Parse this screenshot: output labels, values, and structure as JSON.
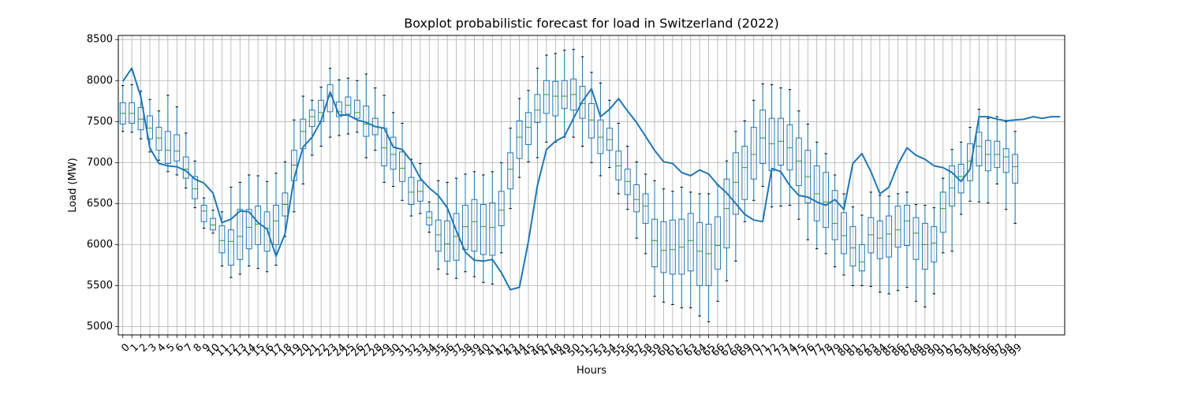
{
  "chart_data": {
    "type": "boxplot",
    "title": "Boxplot probabilistic forecast for load in Switzerland (2022)",
    "xlabel": "Hours",
    "ylabel": "Load (MW)",
    "ylim": [
      4900,
      8550
    ],
    "xlim": [
      -0.5,
      104.5
    ],
    "yticks": [
      5000,
      5500,
      6000,
      6500,
      7000,
      7500,
      8000,
      8500
    ],
    "xticks": [
      0,
      1,
      2,
      3,
      4,
      5,
      6,
      7,
      8,
      9,
      10,
      11,
      12,
      13,
      14,
      15,
      16,
      17,
      18,
      19,
      20,
      21,
      22,
      23,
      24,
      25,
      26,
      27,
      28,
      29,
      30,
      31,
      32,
      33,
      34,
      35,
      36,
      37,
      38,
      39,
      40,
      41,
      42,
      43,
      44,
      45,
      46,
      47,
      48,
      49,
      50,
      51,
      52,
      53,
      54,
      55,
      56,
      57,
      58,
      59,
      60,
      61,
      62,
      63,
      64,
      65,
      66,
      67,
      68,
      69,
      70,
      71,
      72,
      73,
      74,
      75,
      76,
      77,
      78,
      79,
      80,
      81,
      82,
      83,
      84,
      85,
      86,
      87,
      88,
      89,
      90,
      91,
      92,
      93,
      94,
      95,
      96,
      97,
      98,
      99
    ],
    "grid": true,
    "colors": {
      "box": "#1f77b4",
      "median": "#2ca02c",
      "whisker": "#1f77b4",
      "line": "#1f77b4",
      "grid": "#b0b0b0"
    },
    "boxes": [
      {
        "x": 0,
        "whislo": 7380,
        "q1": 7470,
        "med": 7600,
        "q3": 7730,
        "whishi": 7940
      },
      {
        "x": 1,
        "whislo": 7370,
        "q1": 7480,
        "med": 7600,
        "q3": 7730,
        "whishi": 7950
      },
      {
        "x": 2,
        "whislo": 7290,
        "q1": 7400,
        "med": 7530,
        "q3": 7670,
        "whishi": 7870
      },
      {
        "x": 3,
        "whislo": 7130,
        "q1": 7290,
        "med": 7420,
        "q3": 7570,
        "whishi": 7770
      },
      {
        "x": 4,
        "whislo": 7030,
        "q1": 7150,
        "med": 7300,
        "q3": 7430,
        "whishi": 7630
      },
      {
        "x": 5,
        "whislo": 6890,
        "q1": 6990,
        "med": 7150,
        "q3": 7380,
        "whishi": 7820
      },
      {
        "x": 6,
        "whislo": 6850,
        "q1": 7020,
        "med": 7140,
        "q3": 7340,
        "whishi": 7680
      },
      {
        "x": 7,
        "whislo": 6690,
        "q1": 6810,
        "med": 6920,
        "q3": 7070,
        "whishi": 7360
      },
      {
        "x": 8,
        "whislo": 6450,
        "q1": 6560,
        "med": 6680,
        "q3": 6830,
        "whishi": 7020
      },
      {
        "x": 9,
        "whislo": 6200,
        "q1": 6280,
        "med": 6410,
        "q3": 6480,
        "whishi": 6570
      },
      {
        "x": 10,
        "whislo": 6140,
        "q1": 6180,
        "med": 6240,
        "q3": 6320,
        "whishi": 6420
      },
      {
        "x": 11,
        "whislo": 5740,
        "q1": 5900,
        "med": 6050,
        "q3": 6230,
        "whishi": 6400
      },
      {
        "x": 12,
        "whislo": 5600,
        "q1": 5750,
        "med": 6040,
        "q3": 6180,
        "whishi": 6700
      },
      {
        "x": 13,
        "whislo": 5640,
        "q1": 5820,
        "med": 6100,
        "q3": 6430,
        "whishi": 6760
      },
      {
        "x": 14,
        "whislo": 5740,
        "q1": 5950,
        "med": 6210,
        "q3": 6430,
        "whishi": 6850
      },
      {
        "x": 15,
        "whislo": 5710,
        "q1": 6000,
        "med": 6250,
        "q3": 6470,
        "whishi": 6840
      },
      {
        "x": 16,
        "whislo": 5670,
        "q1": 5920,
        "med": 6200,
        "q3": 6400,
        "whishi": 6770
      },
      {
        "x": 17,
        "whislo": 5750,
        "q1": 6000,
        "med": 6290,
        "q3": 6480,
        "whishi": 6870
      },
      {
        "x": 18,
        "whislo": 6100,
        "q1": 6350,
        "med": 6490,
        "q3": 6630,
        "whishi": 7010
      },
      {
        "x": 19,
        "whislo": 6400,
        "q1": 6780,
        "med": 6970,
        "q3": 7150,
        "whishi": 7520
      },
      {
        "x": 20,
        "whislo": 6740,
        "q1": 7170,
        "med": 7380,
        "q3": 7530,
        "whishi": 7810
      },
      {
        "x": 21,
        "whislo": 7090,
        "q1": 7440,
        "med": 7560,
        "q3": 7640,
        "whishi": 7760
      },
      {
        "x": 22,
        "whislo": 7200,
        "q1": 7500,
        "med": 7610,
        "q3": 7760,
        "whishi": 7920
      },
      {
        "x": 23,
        "whislo": 7310,
        "q1": 7620,
        "med": 7810,
        "q3": 7950,
        "whishi": 8150
      },
      {
        "x": 24,
        "whislo": 7330,
        "q1": 7560,
        "med": 7620,
        "q3": 7740,
        "whishi": 8010
      },
      {
        "x": 25,
        "whislo": 7350,
        "q1": 7590,
        "med": 7700,
        "q3": 7800,
        "whishi": 8030
      },
      {
        "x": 26,
        "whislo": 7370,
        "q1": 7540,
        "med": 7610,
        "q3": 7760,
        "whishi": 8000
      },
      {
        "x": 27,
        "whislo": 7060,
        "q1": 7320,
        "med": 7470,
        "q3": 7690,
        "whishi": 8080
      },
      {
        "x": 28,
        "whislo": 7150,
        "q1": 7340,
        "med": 7440,
        "q3": 7540,
        "whishi": 7910
      },
      {
        "x": 29,
        "whislo": 6760,
        "q1": 6960,
        "med": 7180,
        "q3": 7420,
        "whishi": 7820
      },
      {
        "x": 30,
        "whislo": 6710,
        "q1": 6920,
        "med": 7100,
        "q3": 7310,
        "whishi": 7610
      },
      {
        "x": 31,
        "whislo": 6540,
        "q1": 6770,
        "med": 6930,
        "q3": 7130,
        "whishi": 7480
      },
      {
        "x": 32,
        "whislo": 6350,
        "q1": 6490,
        "med": 6640,
        "q3": 6820,
        "whishi": 7040
      },
      {
        "x": 33,
        "whislo": 6380,
        "q1": 6530,
        "med": 6650,
        "q3": 6780,
        "whishi": 6990
      },
      {
        "x": 34,
        "whislo": 6150,
        "q1": 6240,
        "med": 6330,
        "q3": 6400,
        "whishi": 6520
      },
      {
        "x": 35,
        "whislo": 5700,
        "q1": 5920,
        "med": 6120,
        "q3": 6300,
        "whishi": 6780
      },
      {
        "x": 36,
        "whislo": 5640,
        "q1": 5800,
        "med": 6010,
        "q3": 6290,
        "whishi": 6760
      },
      {
        "x": 37,
        "whislo": 5590,
        "q1": 5810,
        "med": 6100,
        "q3": 6380,
        "whishi": 6810
      },
      {
        "x": 38,
        "whislo": 5670,
        "q1": 5940,
        "med": 6220,
        "q3": 6480,
        "whishi": 6860
      },
      {
        "x": 39,
        "whislo": 5610,
        "q1": 5920,
        "med": 6280,
        "q3": 6550,
        "whishi": 6890
      },
      {
        "x": 40,
        "whislo": 5540,
        "q1": 5880,
        "med": 6220,
        "q3": 6490,
        "whishi": 6850
      },
      {
        "x": 41,
        "whislo": 5520,
        "q1": 5870,
        "med": 6210,
        "q3": 6510,
        "whishi": 6890
      },
      {
        "x": 42,
        "whislo": 5900,
        "q1": 6230,
        "med": 6420,
        "q3": 6650,
        "whishi": 7000
      },
      {
        "x": 43,
        "whislo": 6440,
        "q1": 6680,
        "med": 6920,
        "q3": 7120,
        "whishi": 7420
      },
      {
        "x": 44,
        "whislo": 6820,
        "q1": 7050,
        "med": 7310,
        "q3": 7510,
        "whishi": 7780
      },
      {
        "x": 45,
        "whislo": 7010,
        "q1": 7220,
        "med": 7430,
        "q3": 7610,
        "whishi": 7880
      },
      {
        "x": 46,
        "whislo": 7060,
        "q1": 7490,
        "med": 7640,
        "q3": 7830,
        "whishi": 8150
      },
      {
        "x": 47,
        "whislo": 7250,
        "q1": 7600,
        "med": 7830,
        "q3": 8000,
        "whishi": 8310
      },
      {
        "x": 48,
        "whislo": 7250,
        "q1": 7570,
        "med": 7810,
        "q3": 7990,
        "whishi": 8330
      },
      {
        "x": 49,
        "whislo": 7310,
        "q1": 7660,
        "med": 7810,
        "q3": 8000,
        "whishi": 8370
      },
      {
        "x": 50,
        "whislo": 7310,
        "q1": 7640,
        "med": 7830,
        "q3": 8020,
        "whishi": 8380
      },
      {
        "x": 51,
        "whislo": 7200,
        "q1": 7540,
        "med": 7720,
        "q3": 7930,
        "whishi": 8290
      },
      {
        "x": 52,
        "whislo": 7000,
        "q1": 7300,
        "med": 7520,
        "q3": 7720,
        "whishi": 8100
      },
      {
        "x": 53,
        "whislo": 6840,
        "q1": 7110,
        "med": 7310,
        "q3": 7520,
        "whishi": 7970
      },
      {
        "x": 54,
        "whislo": 6940,
        "q1": 7150,
        "med": 7280,
        "q3": 7420,
        "whishi": 7760
      },
      {
        "x": 55,
        "whislo": 6620,
        "q1": 6790,
        "med": 6960,
        "q3": 7140,
        "whishi": 7480
      },
      {
        "x": 56,
        "whislo": 6430,
        "q1": 6610,
        "med": 6770,
        "q3": 6920,
        "whishi": 7200
      },
      {
        "x": 57,
        "whislo": 6080,
        "q1": 6400,
        "med": 6550,
        "q3": 6730,
        "whishi": 7010
      },
      {
        "x": 58,
        "whislo": 5890,
        "q1": 6260,
        "med": 6470,
        "q3": 6620,
        "whishi": 6860
      },
      {
        "x": 59,
        "whislo": 5370,
        "q1": 5730,
        "med": 6050,
        "q3": 6310,
        "whishi": 6780
      },
      {
        "x": 60,
        "whislo": 5300,
        "q1": 5660,
        "med": 5930,
        "q3": 6280,
        "whishi": 6680
      },
      {
        "x": 61,
        "whislo": 5270,
        "q1": 5640,
        "med": 5940,
        "q3": 6300,
        "whishi": 6650
      },
      {
        "x": 62,
        "whislo": 5230,
        "q1": 5640,
        "med": 5970,
        "q3": 6310,
        "whishi": 6700
      },
      {
        "x": 63,
        "whislo": 5230,
        "q1": 5680,
        "med": 6050,
        "q3": 6380,
        "whishi": 6640
      },
      {
        "x": 64,
        "whislo": 5130,
        "q1": 5500,
        "med": 5920,
        "q3": 6270,
        "whishi": 6620
      },
      {
        "x": 65,
        "whislo": 5060,
        "q1": 5500,
        "med": 5890,
        "q3": 6250,
        "whishi": 6620
      },
      {
        "x": 66,
        "whislo": 5310,
        "q1": 5700,
        "med": 5990,
        "q3": 6340,
        "whishi": 6730
      },
      {
        "x": 67,
        "whislo": 5560,
        "q1": 5960,
        "med": 6440,
        "q3": 6800,
        "whishi": 7020
      },
      {
        "x": 68,
        "whislo": 5800,
        "q1": 6370,
        "med": 6760,
        "q3": 7120,
        "whishi": 7380
      },
      {
        "x": 69,
        "whislo": 6280,
        "q1": 6550,
        "med": 6940,
        "q3": 7200,
        "whishi": 7510
      },
      {
        "x": 70,
        "whislo": 6540,
        "q1": 6800,
        "med": 7100,
        "q3": 7430,
        "whishi": 7760
      },
      {
        "x": 71,
        "whislo": 6710,
        "q1": 6990,
        "med": 7300,
        "q3": 7640,
        "whishi": 7960
      },
      {
        "x": 72,
        "whislo": 6460,
        "q1": 6900,
        "med": 7230,
        "q3": 7540,
        "whishi": 7950
      },
      {
        "x": 73,
        "whislo": 6470,
        "q1": 6970,
        "med": 7260,
        "q3": 7540,
        "whishi": 7910
      },
      {
        "x": 74,
        "whislo": 6480,
        "q1": 6910,
        "med": 7180,
        "q3": 7460,
        "whishi": 7890
      },
      {
        "x": 75,
        "whislo": 6310,
        "q1": 6720,
        "med": 7020,
        "q3": 7300,
        "whishi": 7630
      },
      {
        "x": 76,
        "whislo": 6060,
        "q1": 6510,
        "med": 6830,
        "q3": 7150,
        "whishi": 7470
      },
      {
        "x": 77,
        "whislo": 5950,
        "q1": 6290,
        "med": 6620,
        "q3": 6960,
        "whishi": 7250
      },
      {
        "x": 78,
        "whislo": 5890,
        "q1": 6210,
        "med": 6520,
        "q3": 6880,
        "whishi": 7110
      },
      {
        "x": 79,
        "whislo": 5730,
        "q1": 6060,
        "med": 6260,
        "q3": 6660,
        "whishi": 6850
      },
      {
        "x": 80,
        "whislo": 5630,
        "q1": 5890,
        "med": 6110,
        "q3": 6390,
        "whishi": 6620
      },
      {
        "x": 81,
        "whislo": 5500,
        "q1": 5740,
        "med": 5960,
        "q3": 6220,
        "whishi": 6460
      },
      {
        "x": 82,
        "whislo": 5500,
        "q1": 5680,
        "med": 5790,
        "q3": 6000,
        "whishi": 6360
      },
      {
        "x": 83,
        "whislo": 5490,
        "q1": 5900,
        "med": 6120,
        "q3": 6330,
        "whishi": 6640
      },
      {
        "x": 84,
        "whislo": 5420,
        "q1": 5830,
        "med": 6080,
        "q3": 6290,
        "whishi": 6600
      },
      {
        "x": 85,
        "whislo": 5400,
        "q1": 5850,
        "med": 6130,
        "q3": 6350,
        "whishi": 6590
      },
      {
        "x": 86,
        "whislo": 5440,
        "q1": 5970,
        "med": 6180,
        "q3": 6470,
        "whishi": 6620
      },
      {
        "x": 87,
        "whislo": 5480,
        "q1": 5990,
        "med": 6290,
        "q3": 6480,
        "whishi": 6640
      },
      {
        "x": 88,
        "whislo": 5310,
        "q1": 5820,
        "med": 6140,
        "q3": 6330,
        "whishi": 6490
      },
      {
        "x": 89,
        "whislo": 5240,
        "q1": 5700,
        "med": 6000,
        "q3": 6260,
        "whishi": 6480
      },
      {
        "x": 90,
        "whislo": 5400,
        "q1": 5790,
        "med": 6020,
        "q3": 6220,
        "whishi": 6450
      },
      {
        "x": 91,
        "whislo": 5900,
        "q1": 6150,
        "med": 6440,
        "q3": 6640,
        "whishi": 6810
      },
      {
        "x": 92,
        "whislo": 5920,
        "q1": 6470,
        "med": 6690,
        "q3": 6960,
        "whishi": 7160
      },
      {
        "x": 93,
        "whislo": 6370,
        "q1": 6630,
        "med": 6830,
        "q3": 6980,
        "whishi": 7250
      },
      {
        "x": 94,
        "whislo": 6530,
        "q1": 6780,
        "med": 7020,
        "q3": 7230,
        "whishi": 7430
      },
      {
        "x": 95,
        "whislo": 6520,
        "q1": 6960,
        "med": 7200,
        "q3": 7370,
        "whishi": 7650
      },
      {
        "x": 96,
        "whislo": 6510,
        "q1": 6900,
        "med": 7100,
        "q3": 7270,
        "whishi": 7540
      },
      {
        "x": 97,
        "whislo": 6740,
        "q1": 6940,
        "med": 7100,
        "q3": 7260,
        "whishi": 7560
      },
      {
        "x": 98,
        "whislo": 6430,
        "q1": 6880,
        "med": 7070,
        "q3": 7170,
        "whishi": 7500
      },
      {
        "x": 99,
        "whislo": 6260,
        "q1": 6750,
        "med": 6950,
        "q3": 7100,
        "whishi": 7380
      }
    ],
    "series": [
      {
        "type": "line",
        "x": [
          0,
          1,
          2,
          3,
          4,
          5,
          6,
          7,
          8,
          9,
          10,
          11,
          12,
          13,
          14,
          15,
          16,
          17,
          18,
          19,
          20,
          21,
          22,
          23,
          24,
          25,
          26,
          27,
          28,
          29,
          30,
          31,
          32,
          33,
          34,
          35,
          36,
          37,
          38,
          39,
          40,
          41,
          42,
          43,
          44,
          45,
          46,
          47,
          48,
          49,
          50,
          51,
          52,
          53,
          54,
          55,
          56,
          57,
          58,
          59,
          60,
          61,
          62,
          63,
          64,
          65,
          66,
          67,
          68,
          69,
          70,
          71,
          72,
          73,
          74,
          75,
          76,
          77,
          78,
          79,
          80,
          81,
          82,
          83,
          84,
          85,
          86,
          87,
          88,
          89,
          90,
          91,
          92,
          93,
          94,
          95,
          96,
          97,
          98,
          99,
          100,
          101,
          102,
          103,
          104
        ],
        "y": [
          7990,
          8150,
          7800,
          7180,
          6990,
          6960,
          6950,
          6900,
          6800,
          6750,
          6630,
          6270,
          6310,
          6410,
          6400,
          6270,
          6190,
          5860,
          6130,
          6810,
          7190,
          7310,
          7510,
          7860,
          7580,
          7580,
          7520,
          7490,
          7440,
          7420,
          7190,
          7160,
          7020,
          6810,
          6690,
          6600,
          6450,
          6170,
          5910,
          5810,
          5800,
          5820,
          5660,
          5450,
          5480,
          6040,
          6720,
          7160,
          7260,
          7320,
          7540,
          7750,
          7900,
          7560,
          7650,
          7780,
          7630,
          7490,
          7320,
          7150,
          7010,
          6990,
          6880,
          6840,
          6910,
          6860,
          6730,
          6630,
          6500,
          6370,
          6300,
          6280,
          6930,
          6890,
          6720,
          6600,
          6580,
          6520,
          6480,
          6550,
          6430,
          6990,
          7110,
          6890,
          6620,
          6700,
          6980,
          7180,
          7090,
          7040,
          6960,
          6940,
          6880,
          6770,
          6920,
          7560,
          7560,
          7530,
          7510,
          7520,
          7530,
          7560,
          7540,
          7560,
          7560
        ]
      }
    ]
  }
}
